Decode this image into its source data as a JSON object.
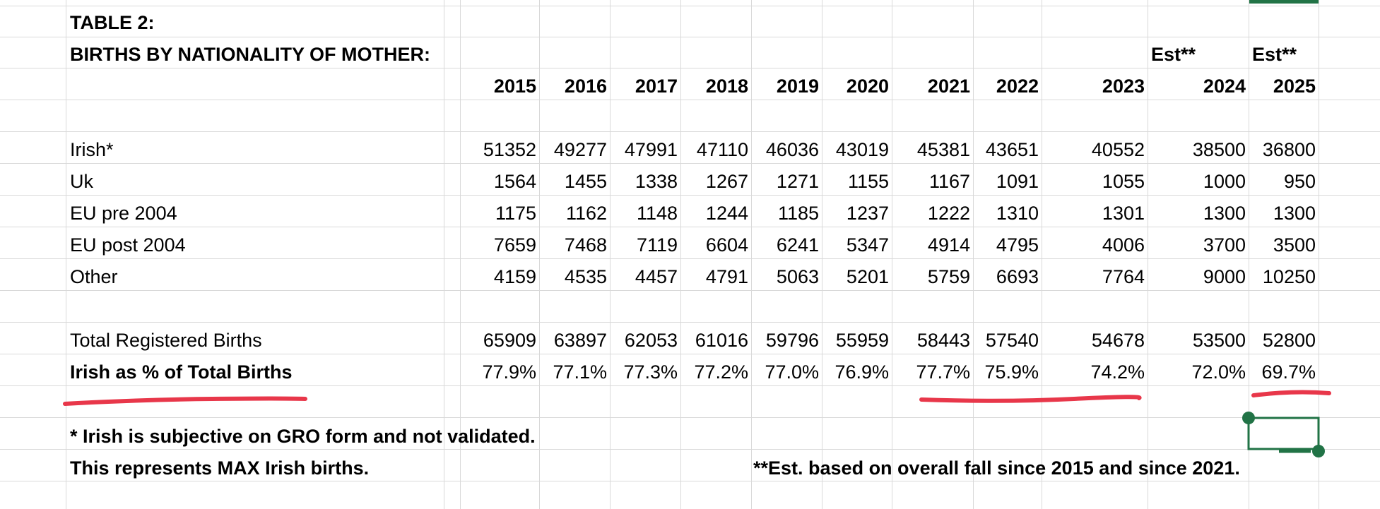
{
  "sheet": {
    "title_line1": "TABLE 2:",
    "title_line2": "BIRTHS BY NATIONALITY OF MOTHER:",
    "est_labels": [
      "Est**",
      "Est**"
    ],
    "years": [
      "2015",
      "2016",
      "2017",
      "2018",
      "2019",
      "2020",
      "2021",
      "2022",
      "2023",
      "2024",
      "2025"
    ],
    "rows": [
      {
        "label": "Irish*",
        "values": [
          "51352",
          "49277",
          "47991",
          "47110",
          "46036",
          "43019",
          "45381",
          "43651",
          "40552",
          "38500",
          "36800"
        ]
      },
      {
        "label": "Uk",
        "values": [
          "1564",
          "1455",
          "1338",
          "1267",
          "1271",
          "1155",
          "1167",
          "1091",
          "1055",
          "1000",
          "950"
        ]
      },
      {
        "label": "EU pre 2004",
        "values": [
          "1175",
          "1162",
          "1148",
          "1244",
          "1185",
          "1237",
          "1222",
          "1310",
          "1301",
          "1300",
          "1300"
        ]
      },
      {
        "label": "EU post 2004",
        "values": [
          "7659",
          "7468",
          "7119",
          "6604",
          "6241",
          "5347",
          "4914",
          "4795",
          "4006",
          "3700",
          "3500"
        ]
      },
      {
        "label": "Other",
        "values": [
          "4159",
          "4535",
          "4457",
          "4791",
          "5063",
          "5201",
          "5759",
          "6693",
          "7764",
          "9000",
          "10250"
        ]
      }
    ],
    "total": {
      "label": "Total Registered Births",
      "values": [
        "65909",
        "63897",
        "62053",
        "61016",
        "59796",
        "55959",
        "58443",
        "57540",
        "54678",
        "53500",
        "52800"
      ]
    },
    "percent": {
      "label": "Irish as % of Total Births",
      "values": [
        "77.9%",
        "77.1%",
        "77.3%",
        "77.2%",
        "77.0%",
        "76.9%",
        "77.7%",
        "75.9%",
        "74.2%",
        "72.0%",
        "69.7%"
      ]
    },
    "footnote1": "* Irish is subjective on GRO form and not validated.",
    "footnote2": "This represents MAX Irish births.",
    "footnote3": "**Est. based on overall fall since 2015 and since 2021."
  },
  "colors": {
    "gridline": "#d9d9d9",
    "selection": "#217346",
    "annotation": "#e8374a"
  }
}
